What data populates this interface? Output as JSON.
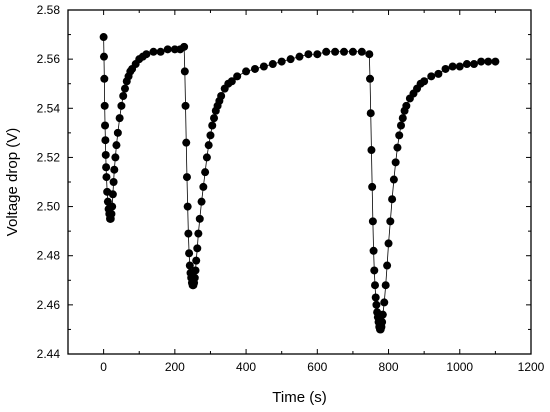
{
  "chart_data": {
    "type": "scatter",
    "title": "",
    "xlabel": "Time (s)",
    "ylabel": "Voltage drop (V)",
    "xlim": [
      -100,
      1200
    ],
    "ylim": [
      2.44,
      2.58
    ],
    "xticks": [
      0,
      200,
      400,
      600,
      800,
      1000,
      1200
    ],
    "yticks": [
      2.44,
      2.46,
      2.48,
      2.5,
      2.52,
      2.54,
      2.56,
      2.58
    ],
    "xtick_labels": [
      "0",
      "200",
      "400",
      "600",
      "800",
      "1000",
      "1200"
    ],
    "ytick_labels": [
      "2.44",
      "2.46",
      "2.48",
      "2.50",
      "2.52",
      "2.54",
      "2.56",
      "2.58"
    ],
    "grid": false,
    "legend": "none",
    "marker_color": "#000000",
    "series": [
      {
        "marker": "filled-circle",
        "connected": true,
        "x": [
          0,
          1,
          2,
          3,
          4,
          5,
          6,
          7,
          8,
          10,
          12,
          14,
          16,
          18,
          20,
          22,
          24,
          26,
          28,
          30,
          33,
          36,
          40,
          45,
          50,
          55,
          60,
          65,
          70,
          75,
          80,
          90,
          100,
          110,
          120,
          140,
          160,
          180,
          200,
          215,
          226,
          228,
          230,
          232,
          234,
          236,
          238,
          240,
          242,
          244,
          246,
          248,
          250,
          252,
          254,
          256,
          258,
          260,
          263,
          266,
          270,
          275,
          280,
          285,
          290,
          295,
          300,
          305,
          310,
          315,
          320,
          325,
          330,
          340,
          350,
          360,
          375,
          400,
          425,
          450,
          475,
          500,
          525,
          550,
          575,
          600,
          625,
          650,
          675,
          700,
          725,
          746,
          748,
          750,
          752,
          754,
          756,
          758,
          760,
          762,
          764,
          766,
          768,
          770,
          772,
          774,
          776,
          778,
          780,
          782,
          784,
          788,
          792,
          796,
          800,
          805,
          810,
          815,
          820,
          825,
          830,
          835,
          840,
          845,
          850,
          860,
          870,
          880,
          890,
          900,
          920,
          940,
          960,
          980,
          1000,
          1020,
          1040,
          1060,
          1080,
          1100
        ],
        "y": [
          2.569,
          2.561,
          2.552,
          2.541,
          2.533,
          2.527,
          2.521,
          2.516,
          2.512,
          2.506,
          2.502,
          2.499,
          2.497,
          2.495,
          2.495,
          2.497,
          2.5,
          2.505,
          2.51,
          2.515,
          2.52,
          2.525,
          2.53,
          2.536,
          2.541,
          2.545,
          2.548,
          2.551,
          2.553,
          2.555,
          2.556,
          2.558,
          2.56,
          2.561,
          2.562,
          2.563,
          2.563,
          2.564,
          2.564,
          2.564,
          2.565,
          2.555,
          2.541,
          2.526,
          2.512,
          2.5,
          2.489,
          2.481,
          2.476,
          2.473,
          2.471,
          2.469,
          2.468,
          2.468,
          2.469,
          2.471,
          2.474,
          2.478,
          2.483,
          2.489,
          2.495,
          2.502,
          2.508,
          2.514,
          2.52,
          2.525,
          2.529,
          2.533,
          2.536,
          2.539,
          2.541,
          2.543,
          2.545,
          2.548,
          2.55,
          2.551,
          2.553,
          2.555,
          2.556,
          2.557,
          2.558,
          2.559,
          2.56,
          2.561,
          2.562,
          2.562,
          2.563,
          2.563,
          2.563,
          2.563,
          2.563,
          2.562,
          2.552,
          2.538,
          2.523,
          2.508,
          2.494,
          2.482,
          2.474,
          2.468,
          2.463,
          2.46,
          2.457,
          2.455,
          2.453,
          2.451,
          2.45,
          2.45,
          2.451,
          2.453,
          2.456,
          2.461,
          2.468,
          2.476,
          2.485,
          2.494,
          2.503,
          2.511,
          2.518,
          2.524,
          2.529,
          2.533,
          2.536,
          2.539,
          2.541,
          2.544,
          2.546,
          2.548,
          2.55,
          2.551,
          2.553,
          2.554,
          2.556,
          2.557,
          2.557,
          2.558,
          2.558,
          2.559,
          2.559,
          2.559
        ]
      }
    ]
  }
}
